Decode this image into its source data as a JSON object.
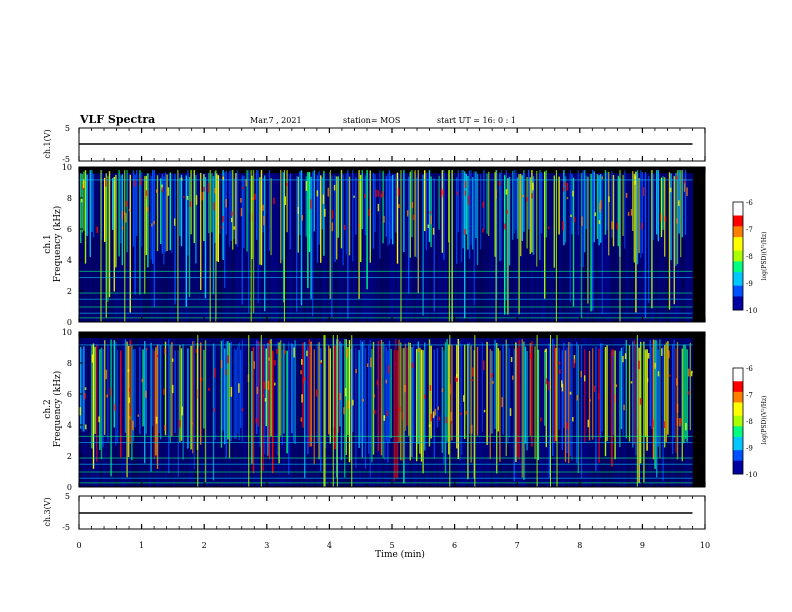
{
  "header": {
    "title": "VLF Spectra",
    "date": "Mar.7 , 2021",
    "station": "station= MOS",
    "start": "start UT = 16: 0 : 1"
  },
  "colors": {
    "background": "#000000",
    "colormap": [
      "#0000a0",
      "#0050ff",
      "#00c8ff",
      "#00ff80",
      "#aaff00",
      "#ffff00",
      "#ff8000",
      "#ff0000",
      "#ffffff"
    ]
  },
  "chart_data": [
    {
      "type": "line",
      "id": "ch1-waveform",
      "ylabel": "ch.1(V)",
      "ylim": [
        -5,
        5
      ],
      "yticks": [
        "5",
        "-5"
      ],
      "series": [
        {
          "x": [
            0,
            9.8
          ],
          "values": [
            0,
            0
          ]
        }
      ]
    },
    {
      "type": "heatmap",
      "id": "ch1-spectrogram",
      "ylabel_top": "ch.1",
      "ylabel": "Frequency (kHz)",
      "ylim": [
        0,
        10
      ],
      "yticks": [
        "0",
        "2",
        "4",
        "6",
        "8",
        "10"
      ],
      "colorbar": {
        "label": "log(PSD)(V²/Hz)",
        "range": [
          -10,
          -6
        ],
        "ticks": [
          "-6",
          "-7",
          "-8",
          "-9",
          "-10"
        ]
      },
      "data_xmax": 9.8,
      "dominant_band_khz": [
        6,
        9.5
      ]
    },
    {
      "type": "heatmap",
      "id": "ch2-spectrogram",
      "ylabel_top": "ch.2",
      "ylabel": "Frequency (kHz)",
      "ylim": [
        0,
        10
      ],
      "yticks": [
        "0",
        "2",
        "4",
        "6",
        "8",
        "10"
      ],
      "colorbar": {
        "label": "log(PSD)(V²/Hz)",
        "range": [
          -10,
          -6
        ],
        "ticks": [
          "-6",
          "-7",
          "-8",
          "-9",
          "-10"
        ]
      },
      "data_xmax": 9.8,
      "dominant_band_khz": [
        4,
        9
      ]
    },
    {
      "type": "line",
      "id": "ch3-waveform",
      "ylabel": "ch.3(V)",
      "ylim": [
        -5,
        5
      ],
      "yticks": [
        "5",
        "-5"
      ],
      "series": [
        {
          "x": [
            0,
            9.8
          ],
          "values": [
            0,
            0
          ]
        }
      ]
    }
  ],
  "xaxis": {
    "label": "Time (min)",
    "xlim": [
      0,
      10
    ],
    "ticks": [
      "0",
      "1",
      "2",
      "3",
      "4",
      "5",
      "6",
      "7",
      "8",
      "9",
      "10"
    ]
  }
}
